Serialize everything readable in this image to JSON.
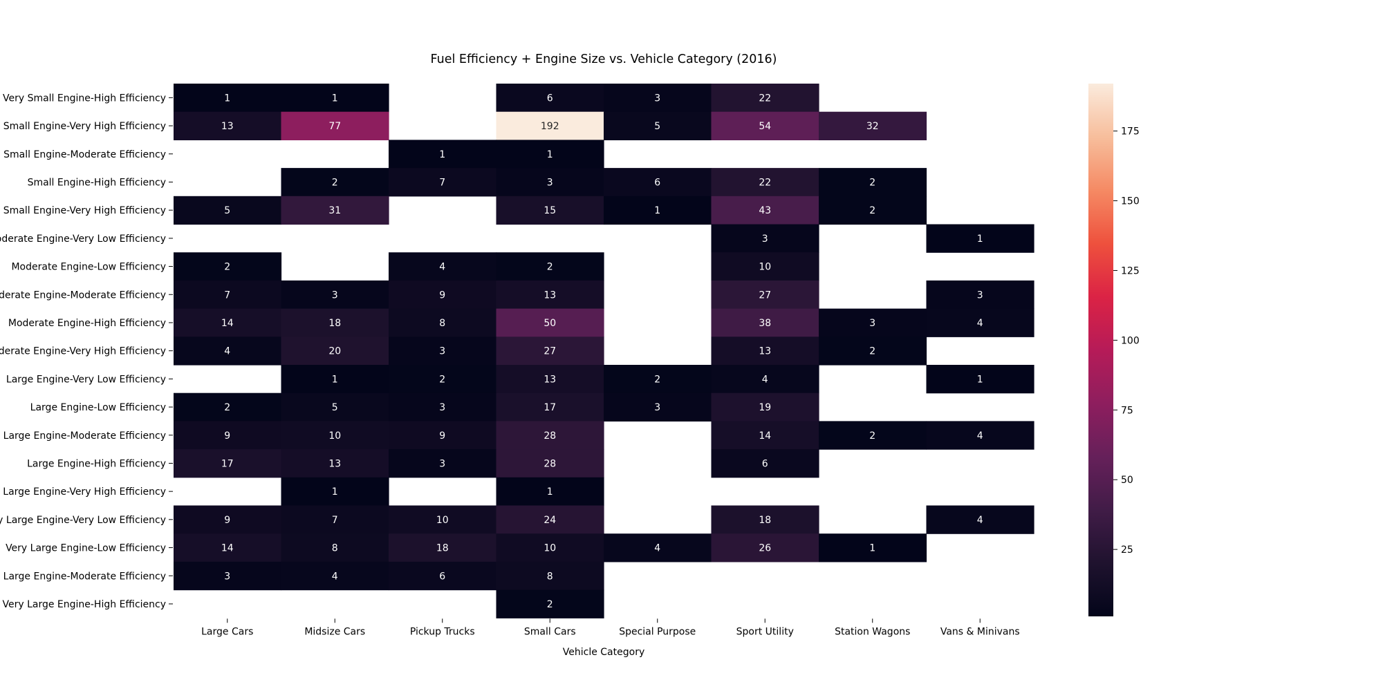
{
  "chart_data": {
    "type": "heatmap",
    "title": "Fuel Efficiency + Engine Size vs. Vehicle Category (2016)",
    "xlabel": "Vehicle Category",
    "ylabel": "",
    "x_categories": [
      "Large Cars",
      "Midsize Cars",
      "Pickup Trucks",
      "Small Cars",
      "Special Purpose",
      "Sport Utility",
      "Station Wagons",
      "Vans & Minivans"
    ],
    "y_categories": [
      "Very Small Engine-High Efficiency",
      "Very Small Engine-Very High Efficiency",
      "Small Engine-Moderate Efficiency",
      "Small Engine-High Efficiency",
      "Small Engine-Very High Efficiency",
      "Moderate Engine-Very Low Efficiency",
      "Moderate Engine-Low Efficiency",
      "Moderate Engine-Moderate Efficiency",
      "Moderate Engine-High Efficiency",
      "Moderate Engine-Very High Efficiency",
      "Large Engine-Very Low Efficiency",
      "Large Engine-Low Efficiency",
      "Large Engine-Moderate Efficiency",
      "Large Engine-High Efficiency",
      "Large Engine-Very High Efficiency",
      "Very Large Engine-Very Low Efficiency",
      "Very Large Engine-Low Efficiency",
      "Very Large Engine-Moderate Efficiency",
      "Very Large Engine-High Efficiency"
    ],
    "values": [
      [
        1,
        1,
        null,
        6,
        3,
        22,
        null,
        null
      ],
      [
        13,
        77,
        null,
        192,
        5,
        54,
        32,
        null
      ],
      [
        null,
        null,
        1,
        1,
        null,
        null,
        null,
        null
      ],
      [
        null,
        2,
        7,
        3,
        6,
        22,
        2,
        null
      ],
      [
        5,
        31,
        null,
        15,
        1,
        43,
        2,
        null
      ],
      [
        null,
        null,
        null,
        null,
        null,
        3,
        null,
        1
      ],
      [
        2,
        null,
        4,
        2,
        null,
        10,
        null,
        null
      ],
      [
        7,
        3,
        9,
        13,
        null,
        27,
        null,
        3
      ],
      [
        14,
        18,
        8,
        50,
        null,
        38,
        3,
        4
      ],
      [
        4,
        20,
        3,
        27,
        null,
        13,
        2,
        null
      ],
      [
        null,
        1,
        2,
        13,
        2,
        4,
        null,
        1
      ],
      [
        2,
        5,
        3,
        17,
        3,
        19,
        null,
        null
      ],
      [
        9,
        10,
        9,
        28,
        null,
        14,
        2,
        4
      ],
      [
        17,
        13,
        3,
        28,
        null,
        6,
        null,
        null
      ],
      [
        null,
        1,
        null,
        1,
        null,
        null,
        null,
        null
      ],
      [
        9,
        7,
        10,
        24,
        null,
        18,
        null,
        4
      ],
      [
        14,
        8,
        18,
        10,
        4,
        26,
        1,
        null
      ],
      [
        3,
        4,
        6,
        8,
        null,
        null,
        null,
        null
      ],
      [
        null,
        null,
        null,
        2,
        null,
        null,
        null,
        null
      ]
    ],
    "color_range": [
      1,
      192
    ],
    "colormap": "rocket",
    "colorbar_ticks": [
      25,
      50,
      75,
      100,
      125,
      150,
      175
    ],
    "missing_cells": "blank",
    "cell_labels": true,
    "grid": false,
    "legend": "colorbar-right"
  }
}
